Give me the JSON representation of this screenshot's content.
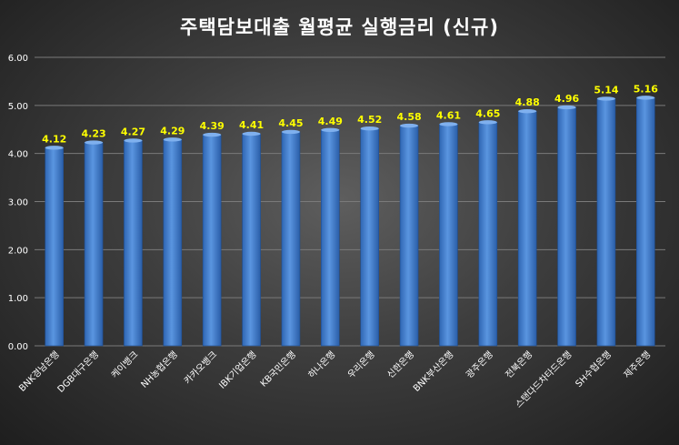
{
  "chart_data": {
    "type": "bar",
    "title": "주택담보대출 월평균 실행금리 (신규)",
    "xlabel": "",
    "ylabel": "",
    "categories": [
      "BNK경남은행",
      "DGB대구은행",
      "케이뱅크",
      "NH농협은행",
      "카카오뱅크",
      "IBK기업은행",
      "KB국민은행",
      "하나은행",
      "우리은행",
      "신한은행",
      "BNK부산은행",
      "광주은행",
      "전북은행",
      "스탠다드차타드은행",
      "SH수협은행",
      "제주은행"
    ],
    "values": [
      4.12,
      4.23,
      4.27,
      4.29,
      4.39,
      4.41,
      4.45,
      4.49,
      4.52,
      4.58,
      4.61,
      4.65,
      4.88,
      4.96,
      5.14,
      5.16
    ],
    "value_labels": [
      "4.12",
      "4.23",
      "4.27",
      "4.29",
      "4.39",
      "4.41",
      "4.45",
      "4.49",
      "4.52",
      "4.58",
      "4.61",
      "4.65",
      "4.88",
      "4.96",
      "5.14",
      "5.16"
    ],
    "ylim": [
      0,
      6
    ],
    "yticks": [
      "0.00",
      "1.00",
      "2.00",
      "3.00",
      "4.00",
      "5.00",
      "6.00"
    ],
    "grid": true,
    "legend": "none",
    "colors": {
      "bar": "#4a86d4",
      "bar_dark": "#2a5ea8",
      "value_label": "#ffff00",
      "grid": "#7a7a7a",
      "text": "#ffffff"
    }
  }
}
